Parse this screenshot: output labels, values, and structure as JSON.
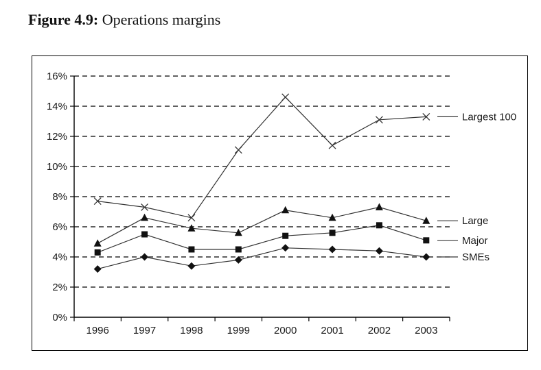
{
  "title": {
    "prefix": "Figure 4.9:",
    "text": " Operations margins"
  },
  "chart_data": {
    "type": "line",
    "title": "Operations margins",
    "categories": [
      "1996",
      "1997",
      "1998",
      "1999",
      "2000",
      "2001",
      "2002",
      "2003"
    ],
    "series": [
      {
        "name": "Largest 100",
        "marker": "x",
        "values": [
          7.7,
          7.3,
          6.6,
          11.1,
          14.6,
          11.4,
          13.1,
          13.3
        ]
      },
      {
        "name": "Large",
        "marker": "triangle",
        "values": [
          4.9,
          6.6,
          5.9,
          5.6,
          7.1,
          6.6,
          7.3,
          6.4
        ]
      },
      {
        "name": "Major",
        "marker": "square",
        "values": [
          4.3,
          5.5,
          4.5,
          4.5,
          5.4,
          5.6,
          6.1,
          5.1
        ]
      },
      {
        "name": "SMEs",
        "marker": "diamond",
        "values": [
          3.2,
          4.0,
          3.4,
          3.8,
          4.6,
          4.5,
          4.4,
          4.0
        ]
      }
    ],
    "xlabel": "",
    "ylabel": "",
    "ylim": [
      0,
      16
    ],
    "ytick_step": 2,
    "ytick_labels": [
      "0%",
      "2%",
      "4%",
      "6%",
      "8%",
      "10%",
      "12%",
      "14%",
      "16%"
    ],
    "grid": "horizontal-dashed",
    "legend_position": "right-inline-labels",
    "colors": {
      "line": "#333333",
      "marker": "#111111",
      "grid": "#000000",
      "axis": "#000000",
      "text": "#1a1a1a",
      "background": "#ffffff",
      "border": "#000000"
    }
  }
}
